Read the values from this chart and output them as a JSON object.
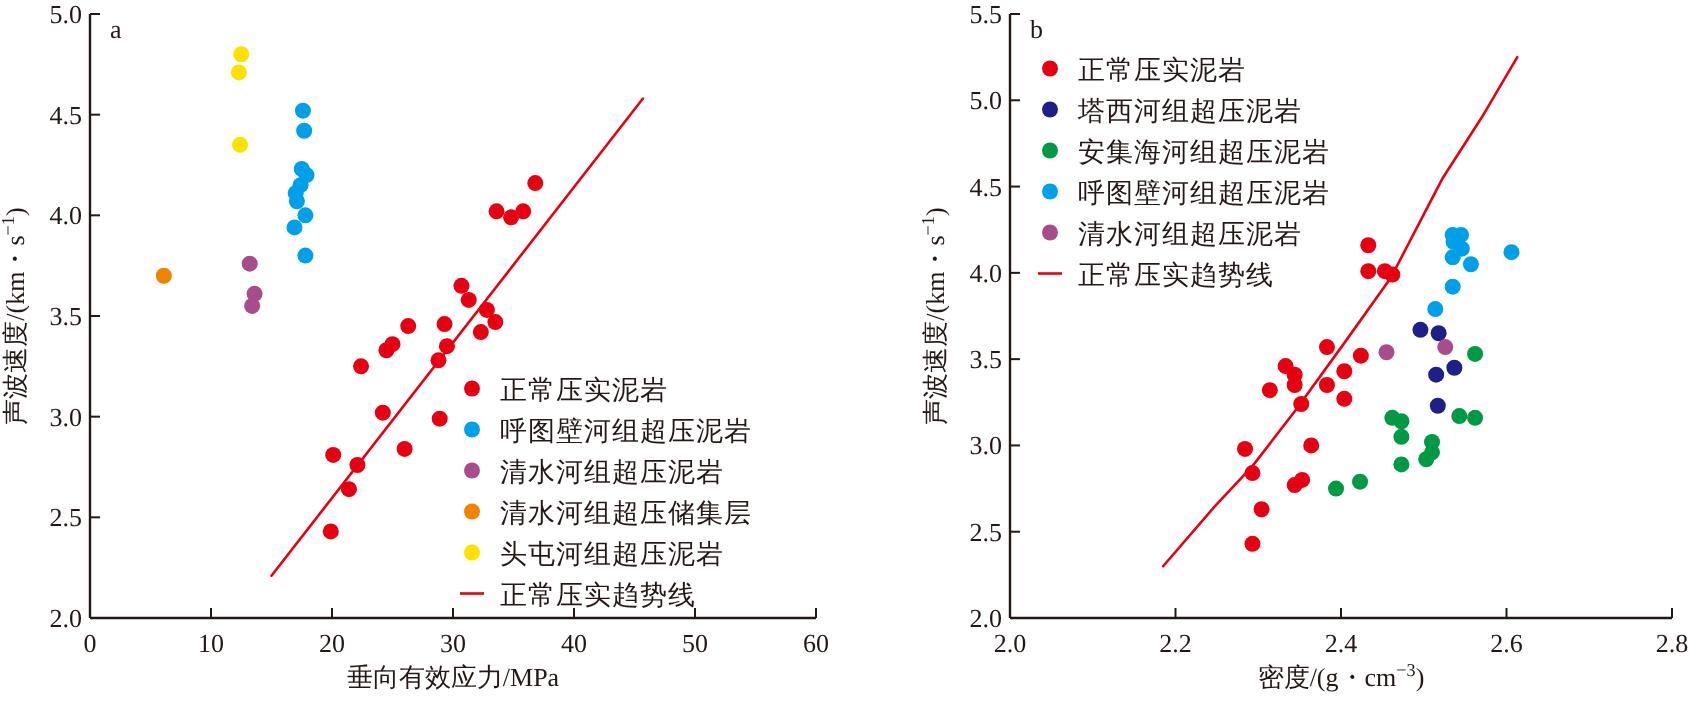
{
  "chart_data": [
    {
      "type": "scatter",
      "title": "a",
      "xlabel": "垂向有效应力/MPa",
      "ylabel": "声波速度/(km・s$^{−1}$)",
      "xlim": [
        0,
        60
      ],
      "xticks": [
        0,
        10,
        20,
        30,
        40,
        50,
        60
      ],
      "ylim": [
        2.0,
        5.0
      ],
      "yticks": [
        {
          "value": 2.0,
          "label": "2.0"
        },
        {
          "value": 2.5,
          "label": "2.5"
        },
        {
          "value": 3.0,
          "label": "3.0"
        },
        {
          "value": 3.5,
          "label": "3.5"
        },
        {
          "value": 4.0,
          "label": "4.0"
        },
        {
          "value": 4.5,
          "label": "4.5"
        },
        {
          "value": 5.0,
          "label": "5.0"
        }
      ],
      "legend": "bottom right",
      "marker": "circle",
      "grid": false,
      "series": [
        {
          "name": "正常压实泥岩",
          "color": "#e60012",
          "x": [
            36.8,
            33.6,
            34.8,
            35.8,
            30.7,
            31.3,
            32.8,
            33.5,
            32.3,
            29.3,
            29.5,
            28.8,
            26.3,
            25.0,
            24.5,
            22.4,
            24.2,
            28.9,
            26.0,
            20.1,
            22.1,
            21.4,
            19.9
          ],
          "values": [
            4.16,
            4.02,
            3.99,
            4.02,
            3.65,
            3.58,
            3.53,
            3.47,
            3.42,
            3.46,
            3.35,
            3.28,
            3.45,
            3.36,
            3.33,
            3.25,
            3.02,
            2.99,
            2.84,
            2.81,
            2.76,
            2.64,
            2.43
          ]
        },
        {
          "name": "呼图壁河组超压泥岩",
          "color": "#00a0e9",
          "x": [
            17.6,
            17.7,
            17.5,
            17.9,
            17.4,
            17.0,
            17.1,
            17.8,
            16.9,
            17.8
          ],
          "values": [
            4.52,
            4.42,
            4.23,
            4.2,
            4.15,
            4.11,
            4.07,
            4.0,
            3.94,
            3.8
          ]
        },
        {
          "name": "清水河组超压泥岩",
          "color": "#a84c8c",
          "x": [
            13.2,
            13.6,
            13.4
          ],
          "values": [
            3.76,
            3.61,
            3.55
          ]
        },
        {
          "name": "清水河组超压储集层",
          "color": "#f08300",
          "x": [
            6.1
          ],
          "values": [
            3.7
          ]
        },
        {
          "name": "头屯河组超压泥岩",
          "color": "#ffe100",
          "x": [
            12.5,
            12.3,
            12.4
          ],
          "values": [
            4.8,
            4.71,
            4.35
          ]
        },
        {
          "name": "正常压实趋势线",
          "type": "line",
          "marker": "none",
          "color": "#e60012",
          "x": [
            15.0,
            45.7
          ],
          "values": [
            2.21,
            4.58
          ]
        }
      ]
    },
    {
      "type": "scatter",
      "title": "b",
      "xlabel": "密度/(g・cm$^{−3}$)",
      "ylabel": "声波速度/(km・s$^{−1}$)",
      "xlim": [
        2.0,
        2.8
      ],
      "xticks": [
        {
          "value": 2.0,
          "label": "2.0"
        },
        2.2,
        2.4,
        2.6,
        2.8
      ],
      "ylim": [
        2.0,
        5.5
      ],
      "yticks": [
        {
          "value": 2.0,
          "label": "2.0"
        },
        2.5,
        {
          "value": 3.0,
          "label": "3.0"
        },
        3.5,
        {
          "value": 4.0,
          "label": "4.0"
        },
        4.5,
        {
          "value": 5.0,
          "label": "5.0"
        },
        5.5
      ],
      "legend": "top left",
      "marker": "circle",
      "grid": false,
      "series": [
        {
          "name": "正常压实泥岩",
          "color": "#e60012",
          "x": [
            2.433,
            2.433,
            2.453,
            2.462,
            2.383,
            2.424,
            2.333,
            2.344,
            2.344,
            2.314,
            2.404,
            2.383,
            2.404,
            2.352,
            2.364,
            2.284,
            2.293,
            2.353,
            2.344,
            2.304,
            2.293
          ],
          "values": [
            4.16,
            4.01,
            4.01,
            3.99,
            3.57,
            3.52,
            3.46,
            3.41,
            3.35,
            3.32,
            3.43,
            3.35,
            3.27,
            3.24,
            3.0,
            2.98,
            2.84,
            2.8,
            2.77,
            2.63,
            2.43
          ]
        },
        {
          "name": "塔西河组超压泥岩",
          "color": "#1d2088",
          "x": [
            2.496,
            2.518,
            2.537,
            2.515,
            2.517
          ],
          "values": [
            3.67,
            3.65,
            3.45,
            3.41,
            3.23
          ]
        },
        {
          "name": "安集海河组超压泥岩",
          "color": "#009944",
          "x": [
            2.562,
            2.462,
            2.473,
            2.543,
            2.562,
            2.473,
            2.51,
            2.51,
            2.503,
            2.473,
            2.423,
            2.394
          ],
          "values": [
            3.53,
            3.16,
            3.14,
            3.17,
            3.16,
            3.05,
            3.02,
            2.96,
            2.92,
            2.89,
            2.79,
            2.75
          ]
        },
        {
          "name": "呼图壁河组超压泥岩",
          "color": "#00a0e9",
          "x": [
            2.535,
            2.545,
            2.536,
            2.546,
            2.535,
            2.606,
            2.557,
            2.535,
            2.514
          ],
          "values": [
            4.22,
            4.22,
            4.18,
            4.14,
            4.09,
            4.12,
            4.05,
            3.92,
            3.79
          ]
        },
        {
          "name": "清水河组超压泥岩",
          "color": "#a84c8c",
          "x": [
            2.455,
            2.526
          ],
          "values": [
            3.54,
            3.57
          ]
        },
        {
          "name": "正常压实趋势线",
          "type": "line",
          "marker": "none",
          "color": "#e60012",
          "x": [
            2.185,
            2.248,
            2.293,
            2.346,
            2.405,
            2.46,
            2.523,
            2.57,
            2.613
          ],
          "values": [
            2.3,
            2.65,
            2.88,
            3.21,
            3.6,
            3.97,
            4.55,
            4.9,
            5.25
          ]
        }
      ]
    }
  ]
}
